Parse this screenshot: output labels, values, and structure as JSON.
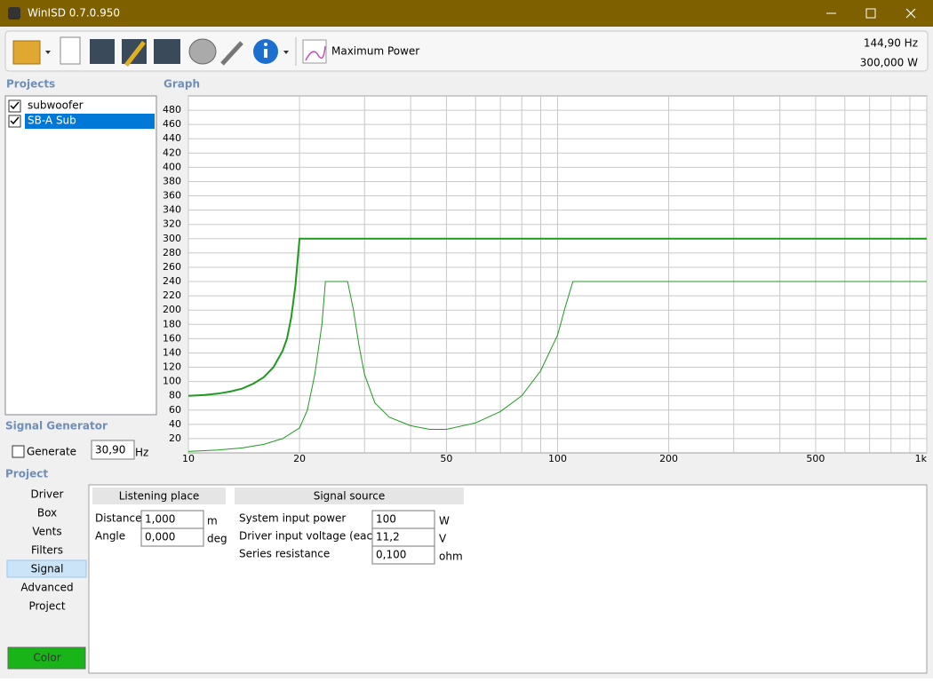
{
  "window": {
    "title": "WinISD 0.7.0.950"
  },
  "toolbar": {
    "mode": "Maximum Power",
    "readout_frequency": "144,90 Hz",
    "readout_power": "300,000 W"
  },
  "projects": {
    "heading": "Projects",
    "items": [
      {
        "name": "subwoofer",
        "checked": true,
        "selected": false
      },
      {
        "name": "SB-A Sub",
        "checked": true,
        "selected": true
      }
    ]
  },
  "signal_generator": {
    "heading": "Signal Generator",
    "generate_label": "Generate",
    "generate_checked": false,
    "frequency": "30,90",
    "unit": "Hz"
  },
  "project": {
    "heading": "Project",
    "tabs": [
      "Driver",
      "Box",
      "Vents",
      "Filters",
      "Signal",
      "Advanced",
      "Project"
    ],
    "active_tab": 4,
    "color_button": "Color"
  },
  "listening_place": {
    "heading": "Listening place",
    "fields": [
      {
        "label": "Distance",
        "value": "1,000",
        "unit": "m"
      },
      {
        "label": "Angle",
        "value": "0,000",
        "unit": "deg"
      }
    ]
  },
  "signal_source": {
    "heading": "Signal source",
    "fields": [
      {
        "label": "System input power",
        "value": "100",
        "unit": "W"
      },
      {
        "label": "Driver input voltage (each)",
        "value": "11,2",
        "unit": "V"
      },
      {
        "label": "Series resistance",
        "value": "0,100",
        "unit": "ohm"
      }
    ]
  },
  "chart_data": {
    "type": "line",
    "title": "Graph",
    "xscale": "log",
    "xlim": [
      10,
      1000
    ],
    "ylim": [
      0,
      500
    ],
    "xticks": [
      10,
      20,
      50,
      100,
      200,
      500,
      {
        "value": 1000,
        "label": "1k"
      }
    ],
    "xminor_grid": [
      30,
      40,
      60,
      70,
      80,
      90,
      300,
      400,
      600,
      700,
      800,
      900
    ],
    "yticks": [
      20,
      40,
      60,
      80,
      100,
      120,
      140,
      160,
      180,
      200,
      220,
      240,
      260,
      280,
      300,
      320,
      340,
      360,
      380,
      400,
      420,
      440,
      460,
      480
    ],
    "grid": true,
    "series": [
      {
        "color": "#1f9a1f",
        "width": 2,
        "x": [
          10,
          11,
          12,
          13,
          14,
          15,
          16,
          17,
          18,
          18.5,
          19,
          19.5,
          20,
          1000
        ],
        "values": [
          80,
          81,
          83,
          86,
          90,
          97,
          106,
          120,
          143,
          160,
          190,
          235,
          300,
          300
        ]
      },
      {
        "color": "#1f9a1f",
        "width": 1,
        "x": [
          10,
          12,
          14,
          16,
          18,
          20,
          21,
          22,
          23,
          23.5,
          27,
          28,
          29,
          30,
          32,
          35,
          40,
          45,
          50,
          60,
          70,
          80,
          90,
          100,
          105,
          110,
          1000
        ],
        "values": [
          2,
          4,
          7,
          12,
          20,
          35,
          60,
          110,
          180,
          240,
          240,
          200,
          150,
          110,
          70,
          50,
          38,
          33,
          33,
          42,
          58,
          80,
          115,
          165,
          205,
          240,
          240
        ]
      }
    ]
  }
}
